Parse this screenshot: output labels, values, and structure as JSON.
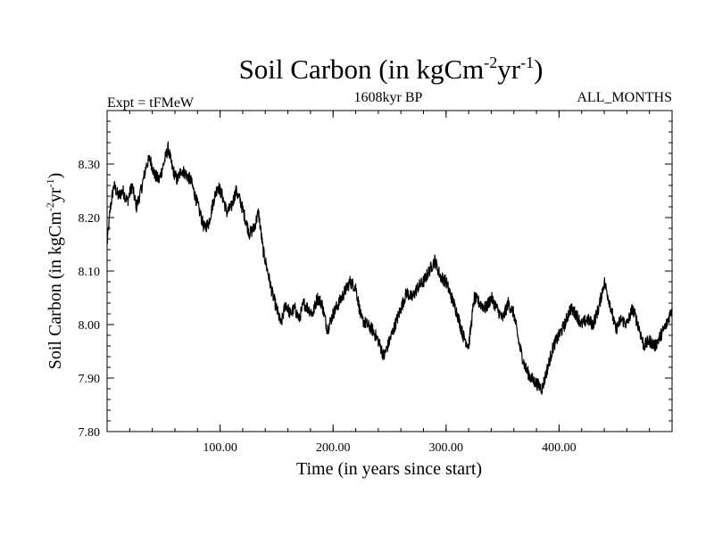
{
  "chart_data": {
    "type": "line",
    "title": {
      "main": "Soil Carbon (in kgCm",
      "sup1": "-2",
      "mid": "yr",
      "sup2": "-1",
      "end": ")"
    },
    "subtitle_left": "Expt = tFMeW",
    "subtitle_center": "1608kyr BP",
    "subtitle_right": "ALL_MONTHS",
    "xlabel": "Time (in years since start)",
    "ylabel": {
      "main": "Soil Carbon (in kgCm",
      "sup1": "-2",
      "mid": "yr",
      "sup2": "-1",
      "end": ")"
    },
    "xlim": [
      0,
      500
    ],
    "ylim": [
      7.8,
      8.4
    ],
    "x_ticks": [
      {
        "value": 100,
        "label": "100.00"
      },
      {
        "value": 200,
        "label": "200.00"
      },
      {
        "value": 300,
        "label": "300.00"
      },
      {
        "value": 400,
        "label": "400.00"
      }
    ],
    "y_ticks": [
      {
        "value": 7.8,
        "label": "7.80"
      },
      {
        "value": 7.9,
        "label": "7.90"
      },
      {
        "value": 8.0,
        "label": "8.00"
      },
      {
        "value": 8.1,
        "label": "8.10"
      },
      {
        "value": 8.2,
        "label": "8.20"
      },
      {
        "value": 8.3,
        "label": "8.30"
      }
    ],
    "series": [
      {
        "name": "Soil Carbon",
        "color": "#000000",
        "noise_amplitude": 0.012,
        "x": [
          0,
          3,
          6,
          10,
          14,
          18,
          22,
          26,
          30,
          35,
          38,
          42,
          46,
          50,
          54,
          58,
          62,
          66,
          70,
          74,
          78,
          82,
          86,
          90,
          94,
          98,
          102,
          106,
          110,
          114,
          118,
          122,
          126,
          130,
          134,
          138,
          142,
          146,
          150,
          154,
          158,
          162,
          166,
          170,
          174,
          178,
          182,
          186,
          190,
          195,
          200,
          205,
          210,
          215,
          220,
          225,
          230,
          235,
          240,
          245,
          250,
          255,
          260,
          265,
          270,
          275,
          280,
          285,
          290,
          295,
          300,
          305,
          310,
          315,
          320,
          325,
          330,
          335,
          340,
          345,
          350,
          355,
          360,
          365,
          370,
          375,
          380,
          385,
          390,
          395,
          400,
          405,
          410,
          415,
          420,
          425,
          430,
          435,
          440,
          445,
          450,
          455,
          460,
          465,
          470,
          475,
          480,
          485,
          490,
          495,
          500
        ],
        "y": [
          8.15,
          8.22,
          8.26,
          8.24,
          8.25,
          8.23,
          8.26,
          8.22,
          8.25,
          8.3,
          8.31,
          8.28,
          8.27,
          8.3,
          8.33,
          8.29,
          8.27,
          8.29,
          8.28,
          8.27,
          8.24,
          8.21,
          8.18,
          8.19,
          8.23,
          8.26,
          8.24,
          8.21,
          8.22,
          8.25,
          8.23,
          8.2,
          8.17,
          8.18,
          8.21,
          8.14,
          8.1,
          8.06,
          8.03,
          8.0,
          8.04,
          8.02,
          8.03,
          8.01,
          8.04,
          8.03,
          8.02,
          8.05,
          8.04,
          7.99,
          8.02,
          8.04,
          8.06,
          8.08,
          8.07,
          8.01,
          8.0,
          7.99,
          7.97,
          7.94,
          7.97,
          8.0,
          8.03,
          8.06,
          8.05,
          8.07,
          8.08,
          8.1,
          8.12,
          8.09,
          8.08,
          8.05,
          8.02,
          7.98,
          7.96,
          8.05,
          8.04,
          8.03,
          8.05,
          8.03,
          8.01,
          8.04,
          8.02,
          7.96,
          7.92,
          7.9,
          7.89,
          7.88,
          7.92,
          7.96,
          7.98,
          8.0,
          8.03,
          8.02,
          8.0,
          8.01,
          8.0,
          8.03,
          8.08,
          8.04,
          7.99,
          8.01,
          8.0,
          8.03,
          8.0,
          7.96,
          7.97,
          7.96,
          7.98,
          8.0,
          8.03
        ]
      }
    ]
  }
}
